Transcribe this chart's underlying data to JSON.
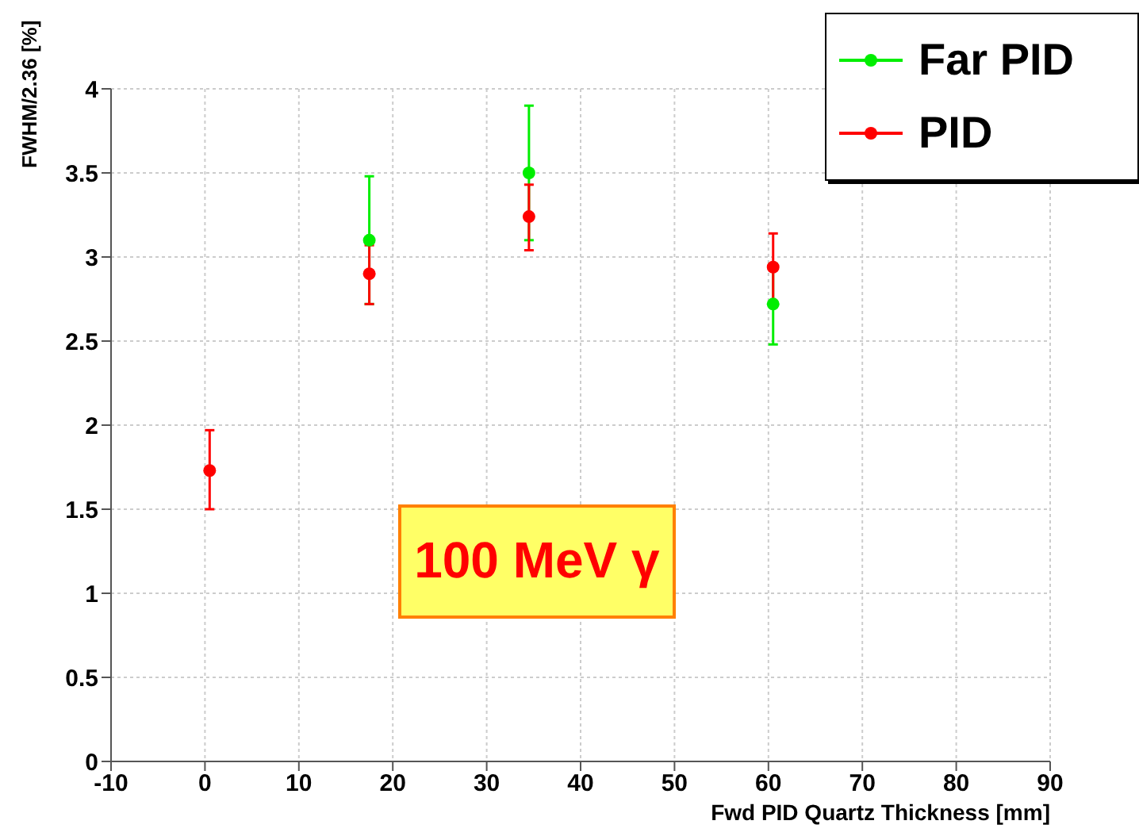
{
  "chart_data": {
    "type": "scatter",
    "xlabel": "Fwd PID Quartz Thickness [mm]",
    "ylabel": "FWHM/2.36 [%]",
    "xlim": [
      -10,
      90
    ],
    "xticks": [
      -10,
      0,
      10,
      20,
      30,
      40,
      50,
      60,
      70,
      80,
      90
    ],
    "ylim": [
      0,
      4
    ],
    "yticks": [
      0,
      0.5,
      1,
      1.5,
      2,
      2.5,
      3,
      3.5,
      4
    ],
    "grid": true,
    "legend": "top right",
    "marker": "circle",
    "series": [
      {
        "name": "Far PID",
        "color": "#00ee00",
        "x": [
          17.5,
          34.5,
          60.5
        ],
        "values": [
          3.1,
          3.5,
          2.72
        ],
        "errors": [
          [
            2.72,
            3.48
          ],
          [
            3.1,
            3.9
          ],
          [
            2.48,
            2.96
          ]
        ]
      },
      {
        "name": "PID",
        "color": "#ff0000",
        "x": [
          0.5,
          17.5,
          34.5,
          60.5
        ],
        "values": [
          1.73,
          2.9,
          3.24,
          2.94
        ],
        "errors": [
          [
            1.5,
            1.97
          ],
          [
            2.72,
            3.07
          ],
          [
            3.04,
            3.43
          ],
          [
            2.73,
            3.14
          ]
        ]
      }
    ],
    "annotations": [
      "100 MeV γ"
    ]
  }
}
